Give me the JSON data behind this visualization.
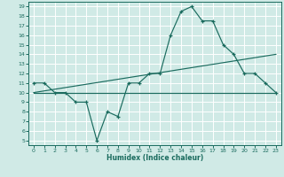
{
  "bg_color": "#d0eae6",
  "grid_color": "#b8d8d4",
  "line_color": "#1a6b5e",
  "xlabel": "Humidex (Indice chaleur)",
  "xlim": [
    -0.5,
    23.5
  ],
  "ylim": [
    4.5,
    19.5
  ],
  "xticks": [
    0,
    1,
    2,
    3,
    4,
    5,
    6,
    7,
    8,
    9,
    10,
    11,
    12,
    13,
    14,
    15,
    16,
    17,
    18,
    19,
    20,
    21,
    22,
    23
  ],
  "yticks": [
    5,
    6,
    7,
    8,
    9,
    10,
    11,
    12,
    13,
    14,
    15,
    16,
    17,
    18,
    19
  ],
  "line1_x": [
    0,
    1,
    2,
    3,
    4,
    5,
    6,
    7,
    8,
    9,
    10,
    11,
    12,
    13,
    14,
    15,
    16,
    17,
    18,
    19,
    20,
    21,
    22,
    23
  ],
  "line1_y": [
    11,
    11,
    10,
    10,
    9,
    9,
    5,
    8,
    7.5,
    11,
    11,
    12,
    12,
    16,
    18.5,
    19,
    17.5,
    17.5,
    15,
    14,
    12,
    12,
    11,
    10
  ],
  "line2_x": [
    0,
    23
  ],
  "line2_y": [
    10,
    10
  ],
  "line3_x": [
    0,
    23
  ],
  "line3_y": [
    10,
    14
  ],
  "marker_x": [
    0,
    1,
    2,
    3,
    4,
    5,
    6,
    7,
    8,
    9,
    10,
    11,
    12,
    13,
    14,
    15,
    16,
    17,
    18,
    19,
    20,
    21,
    22,
    23
  ],
  "marker_y": [
    11,
    11,
    10,
    10,
    9,
    9,
    5,
    8,
    7.5,
    11,
    11,
    12,
    12,
    16,
    18.5,
    19,
    17.5,
    17.5,
    15,
    14,
    12,
    12,
    11,
    10
  ]
}
